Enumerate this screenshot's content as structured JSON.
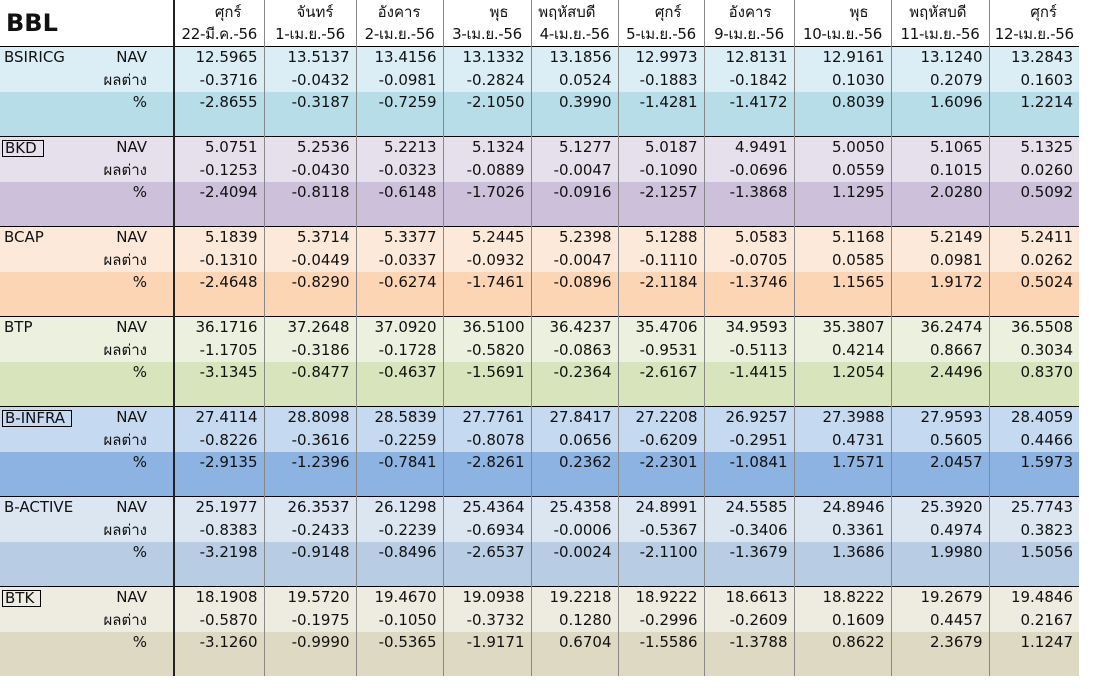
{
  "title": "BBL",
  "days": [
    "ศุกร์",
    "จันทร์",
    "อังคาร",
    "พุธ",
    "พฤหัสบดี",
    "ศุกร์",
    "อังคาร",
    "พุธ",
    "พฤหัสบดี",
    "ศุกร์"
  ],
  "dates": [
    "22-มี.ค.-56",
    "1-เม.ย.-56",
    "2-เม.ย.-56",
    "3-เม.ย.-56",
    "4-เม.ย.-56",
    "5-เม.ย.-56",
    "9-เม.ย.-56",
    "10-เม.ย.-56",
    "11-เม.ย.-56",
    "12-เม.ย.-56"
  ],
  "row_labels": [
    "NAV",
    "ผลต่าง",
    "%"
  ],
  "funds": [
    {
      "name": "BSIRICG",
      "colors": [
        "#dbeef5",
        "#dbeef5",
        "#b6dde8"
      ],
      "rows": [
        [
          "12.5965",
          "13.5137",
          "13.4156",
          "13.1332",
          "13.1856",
          "12.9973",
          "12.8131",
          "12.9161",
          "13.1240",
          "13.2843"
        ],
        [
          "-0.3716",
          "-0.0432",
          "-0.0981",
          "-0.2824",
          "0.0524",
          "-0.1883",
          "-0.1842",
          "0.1030",
          "0.2079",
          "0.1603"
        ],
        [
          "-2.8655",
          "-0.3187",
          "-0.7259",
          "-2.1050",
          "0.3990",
          "-1.4281",
          "-1.4172",
          "0.8039",
          "1.6096",
          "1.2214"
        ]
      ]
    },
    {
      "name": "BKD",
      "colors": [
        "#e6e0ec",
        "#e6e0ec",
        "#ccc0da"
      ],
      "rows": [
        [
          "5.0751",
          "5.2536",
          "5.2213",
          "5.1324",
          "5.1277",
          "5.0187",
          "4.9491",
          "5.0050",
          "5.1065",
          "5.1325"
        ],
        [
          "-0.1253",
          "-0.0430",
          "-0.0323",
          "-0.0889",
          "-0.0047",
          "-0.1090",
          "-0.0696",
          "0.0559",
          "0.1015",
          "0.0260"
        ],
        [
          "-2.4094",
          "-0.8118",
          "-0.6148",
          "-1.7026",
          "-0.0916",
          "-2.1257",
          "-1.3868",
          "1.1295",
          "2.0280",
          "0.5092"
        ]
      ]
    },
    {
      "name": "BCAP",
      "colors": [
        "#fde9d9",
        "#fde9d9",
        "#fcd5b4"
      ],
      "rows": [
        [
          "5.1839",
          "5.3714",
          "5.3377",
          "5.2445",
          "5.2398",
          "5.1288",
          "5.0583",
          "5.1168",
          "5.2149",
          "5.2411"
        ],
        [
          "-0.1310",
          "-0.0449",
          "-0.0337",
          "-0.0932",
          "-0.0047",
          "-0.1110",
          "-0.0705",
          "0.0585",
          "0.0981",
          "0.0262"
        ],
        [
          "-2.4648",
          "-0.8290",
          "-0.6274",
          "-1.7461",
          "-0.0896",
          "-2.1184",
          "-1.3746",
          "1.1565",
          "1.9172",
          "0.5024"
        ]
      ]
    },
    {
      "name": "BTP",
      "colors": [
        "#ebf1de",
        "#ebf1de",
        "#d7e4bc"
      ],
      "rows": [
        [
          "36.1716",
          "37.2648",
          "37.0920",
          "36.5100",
          "36.4237",
          "35.4706",
          "34.9593",
          "35.3807",
          "36.2474",
          "36.5508"
        ],
        [
          "-1.1705",
          "-0.3186",
          "-0.1728",
          "-0.5820",
          "-0.0863",
          "-0.9531",
          "-0.5113",
          "0.4214",
          "0.8667",
          "0.3034"
        ],
        [
          "-3.1345",
          "-0.8477",
          "-0.4637",
          "-1.5691",
          "-0.2364",
          "-2.6167",
          "-1.4415",
          "1.2054",
          "2.4496",
          "0.8370"
        ]
      ]
    },
    {
      "name": "B-INFRA",
      "colors": [
        "#c5d9f1",
        "#c5d9f1",
        "#8db3e2"
      ],
      "rows": [
        [
          "27.4114",
          "28.8098",
          "28.5839",
          "27.7761",
          "27.8417",
          "27.2208",
          "26.9257",
          "27.3988",
          "27.9593",
          "28.4059"
        ],
        [
          "-0.8226",
          "-0.3616",
          "-0.2259",
          "-0.8078",
          "0.0656",
          "-0.6209",
          "-0.2951",
          "0.4731",
          "0.5605",
          "0.4466"
        ],
        [
          "-2.9135",
          "-1.2396",
          "-0.7841",
          "-2.8261",
          "0.2362",
          "-2.2301",
          "-1.0841",
          "1.7571",
          "2.0457",
          "1.5973"
        ]
      ]
    },
    {
      "name": "B-ACTIVE",
      "colors": [
        "#dce6f1",
        "#dce6f1",
        "#b8cce4"
      ],
      "rows": [
        [
          "25.1977",
          "26.3537",
          "26.1298",
          "25.4364",
          "25.4358",
          "24.8991",
          "24.5585",
          "24.8946",
          "25.3920",
          "25.7743"
        ],
        [
          "-0.8383",
          "-0.2433",
          "-0.2239",
          "-0.6934",
          "-0.0006",
          "-0.5367",
          "-0.3406",
          "0.3361",
          "0.4974",
          "0.3823"
        ],
        [
          "-3.2198",
          "-0.9148",
          "-0.8496",
          "-2.6537",
          "-0.0024",
          "-2.1100",
          "-1.3679",
          "1.3686",
          "1.9980",
          "1.5056"
        ]
      ]
    },
    {
      "name": "BTK",
      "colors": [
        "#eeece1",
        "#eeece1",
        "#ddd9c3"
      ],
      "rows": [
        [
          "18.1908",
          "19.5720",
          "19.4670",
          "19.0938",
          "19.2218",
          "18.9222",
          "18.6613",
          "18.8222",
          "19.2679",
          "19.4846"
        ],
        [
          "-0.5870",
          "-0.1975",
          "-0.1050",
          "-0.3732",
          "0.1280",
          "-0.2996",
          "-0.2609",
          "0.1609",
          "0.4457",
          "0.2167"
        ],
        [
          "-3.1260",
          "-0.9990",
          "-0.5365",
          "-1.9171",
          "0.6704",
          "-1.5586",
          "-1.3788",
          "0.8622",
          "2.3679",
          "1.1247"
        ]
      ]
    }
  ]
}
